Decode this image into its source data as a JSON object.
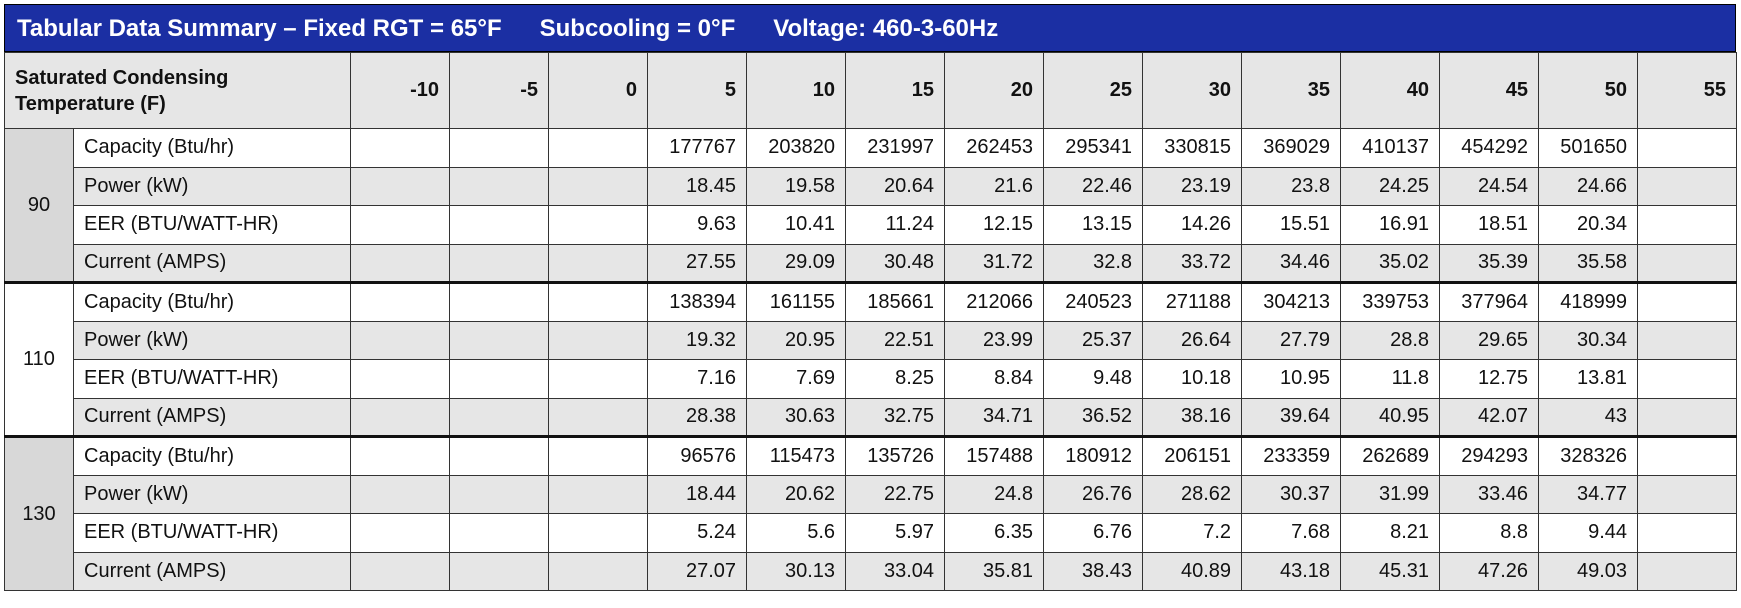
{
  "title": [
    "Tabular Data Summary – Fixed RGT = 65°F",
    "Subcooling = 0°F",
    "Voltage: 460-3-60Hz"
  ],
  "table": {
    "header_label": "Saturated Condensing Temperature (F)",
    "columns": [
      -10,
      -5,
      0,
      5,
      10,
      15,
      20,
      25,
      30,
      35,
      40,
      45,
      50,
      55
    ],
    "groups": [
      {
        "temp": 90,
        "rows": [
          {
            "label": "Capacity (Btu/hr)",
            "values": [
              null,
              null,
              null,
              177767,
              203820,
              231997,
              262453,
              295341,
              330815,
              369029,
              410137,
              454292,
              501650,
              null
            ]
          },
          {
            "label": "Power (kW)",
            "values": [
              null,
              null,
              null,
              18.45,
              19.58,
              20.64,
              21.6,
              22.46,
              23.19,
              23.8,
              24.25,
              24.54,
              24.66,
              null
            ]
          },
          {
            "label": "EER (BTU/WATT-HR)",
            "values": [
              null,
              null,
              null,
              9.63,
              10.41,
              11.24,
              12.15,
              13.15,
              14.26,
              15.51,
              16.91,
              18.51,
              20.34,
              null
            ]
          },
          {
            "label": "Current (AMPS)",
            "values": [
              null,
              null,
              null,
              27.55,
              29.09,
              30.48,
              31.72,
              32.8,
              33.72,
              34.46,
              35.02,
              35.39,
              35.58,
              null
            ]
          }
        ]
      },
      {
        "temp": 110,
        "rows": [
          {
            "label": "Capacity (Btu/hr)",
            "values": [
              null,
              null,
              null,
              138394,
              161155,
              185661,
              212066,
              240523,
              271188,
              304213,
              339753,
              377964,
              418999,
              null
            ]
          },
          {
            "label": "Power (kW)",
            "values": [
              null,
              null,
              null,
              19.32,
              20.95,
              22.51,
              23.99,
              25.37,
              26.64,
              27.79,
              28.8,
              29.65,
              30.34,
              null
            ]
          },
          {
            "label": "EER (BTU/WATT-HR)",
            "values": [
              null,
              null,
              null,
              7.16,
              7.69,
              8.25,
              8.84,
              9.48,
              10.18,
              10.95,
              11.8,
              12.75,
              13.81,
              null
            ]
          },
          {
            "label": "Current (AMPS)",
            "values": [
              null,
              null,
              null,
              28.38,
              30.63,
              32.75,
              34.71,
              36.52,
              38.16,
              39.64,
              40.95,
              42.07,
              43,
              null
            ]
          }
        ]
      },
      {
        "temp": 130,
        "rows": [
          {
            "label": "Capacity (Btu/hr)",
            "values": [
              null,
              null,
              null,
              96576,
              115473,
              135726,
              157488,
              180912,
              206151,
              233359,
              262689,
              294293,
              328326,
              null
            ]
          },
          {
            "label": "Power (kW)",
            "values": [
              null,
              null,
              null,
              18.44,
              20.62,
              22.75,
              24.8,
              26.76,
              28.62,
              30.37,
              31.99,
              33.46,
              34.77,
              null
            ]
          },
          {
            "label": "EER (BTU/WATT-HR)",
            "values": [
              null,
              null,
              null,
              5.24,
              5.6,
              5.97,
              6.35,
              6.76,
              7.2,
              7.68,
              8.21,
              8.8,
              9.44,
              null
            ]
          },
          {
            "label": "Current (AMPS)",
            "values": [
              null,
              null,
              null,
              27.07,
              30.13,
              33.04,
              35.81,
              38.43,
              40.89,
              43.18,
              45.31,
              47.26,
              49.03,
              null
            ]
          }
        ]
      }
    ]
  }
}
